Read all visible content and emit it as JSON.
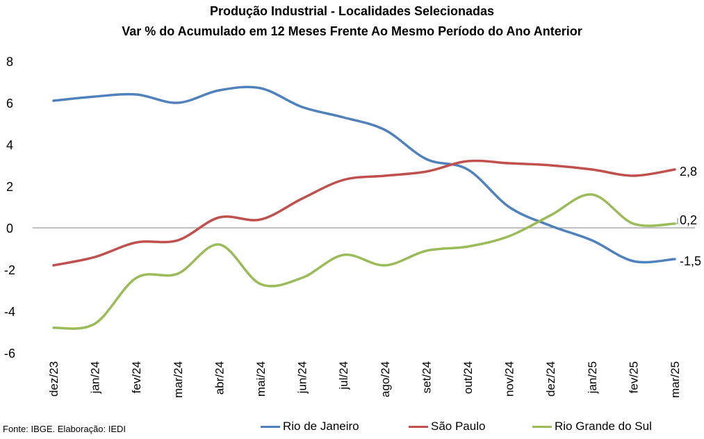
{
  "chart_data": {
    "type": "line",
    "title": "Produção Industrial - Localidades Selecionadas",
    "subtitle": "Var % do Acumulado em 12 Meses Frente Ao Mesmo Período do Ano Anterior",
    "categories": [
      "dez/23",
      "jan/24",
      "fev/24",
      "mar/24",
      "abr/24",
      "mai/24",
      "jun/24",
      "jul/24",
      "ago/24",
      "set/24",
      "out/24",
      "nov/24",
      "dez/24",
      "jan/25",
      "fev/25",
      "mar/25"
    ],
    "ylim": [
      -6,
      8
    ],
    "yticks": [
      "8",
      "6",
      "4",
      "2",
      "0",
      "-2",
      "-4",
      "-6"
    ],
    "grid": false,
    "legend_position": "bottom",
    "series": [
      {
        "name": "Rio de Janeiro",
        "color": "#4F81BD",
        "values": [
          6.1,
          6.3,
          6.4,
          6.0,
          6.6,
          6.7,
          5.8,
          5.3,
          4.7,
          3.3,
          2.8,
          1.0,
          0.1,
          -0.6,
          -1.6,
          -1.5
        ],
        "end_label": "-1,5"
      },
      {
        "name": "São Paulo",
        "color": "#C0504D",
        "values": [
          -1.8,
          -1.4,
          -0.7,
          -0.6,
          0.5,
          0.4,
          1.4,
          2.3,
          2.5,
          2.7,
          3.2,
          3.1,
          3.0,
          2.8,
          2.5,
          2.8
        ],
        "end_label": "2,8"
      },
      {
        "name": "Rio Grande do Sul",
        "color": "#9BBB59",
        "values": [
          -4.8,
          -4.6,
          -2.4,
          -2.2,
          -0.8,
          -2.7,
          -2.4,
          -1.3,
          -1.8,
          -1.1,
          -0.9,
          -0.4,
          0.6,
          1.6,
          0.2,
          0.2
        ],
        "end_label": "0,2"
      }
    ]
  },
  "source": "Fonte: IBGE. Elaboração: IEDI"
}
